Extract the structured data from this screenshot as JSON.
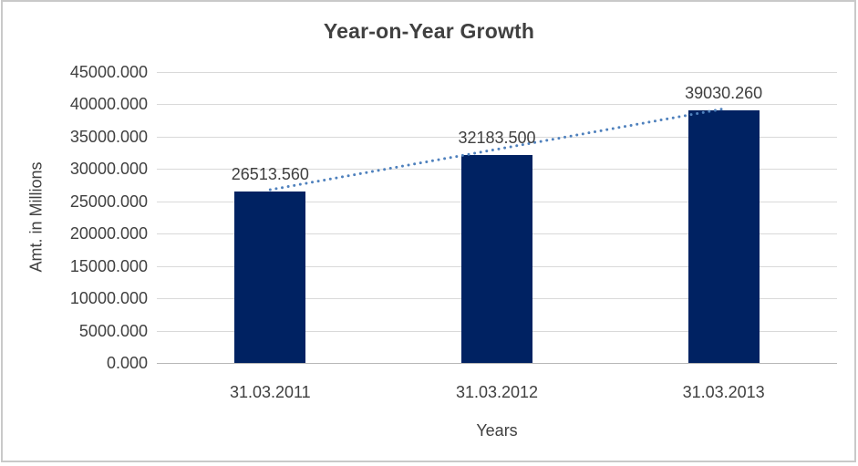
{
  "chart_data": {
    "type": "bar",
    "title": "Year-on-Year Growth",
    "xlabel": "Years",
    "ylabel": "Amt. in Millions",
    "categories": [
      "31.03.2011",
      "31.03.2012",
      "31.03.2013"
    ],
    "series": [
      {
        "name": "Amt. in Millions",
        "values": [
          26513.56,
          32183.5,
          39030.26
        ],
        "value_labels": [
          "26513.560",
          "32183.500",
          "39030.260"
        ]
      }
    ],
    "ylim": [
      0,
      45000
    ],
    "ytick_step": 5000,
    "y_tick_labels": [
      "0.000",
      "5000.000",
      "10000.000",
      "15000.000",
      "20000.000",
      "25000.000",
      "30000.000",
      "35000.000",
      "40000.000",
      "45000.000"
    ],
    "grid": true,
    "legend": false,
    "trendline": {
      "type": "linear",
      "style": "dotted",
      "color": "#4f81bd"
    },
    "colors": {
      "bar": "#002262",
      "gridline": "#d9d9d9",
      "axis_line": "#b7b7b7",
      "text": "#404040",
      "title": "#404040",
      "background": "#ffffff",
      "frame_border": "#c9c9c9"
    }
  }
}
